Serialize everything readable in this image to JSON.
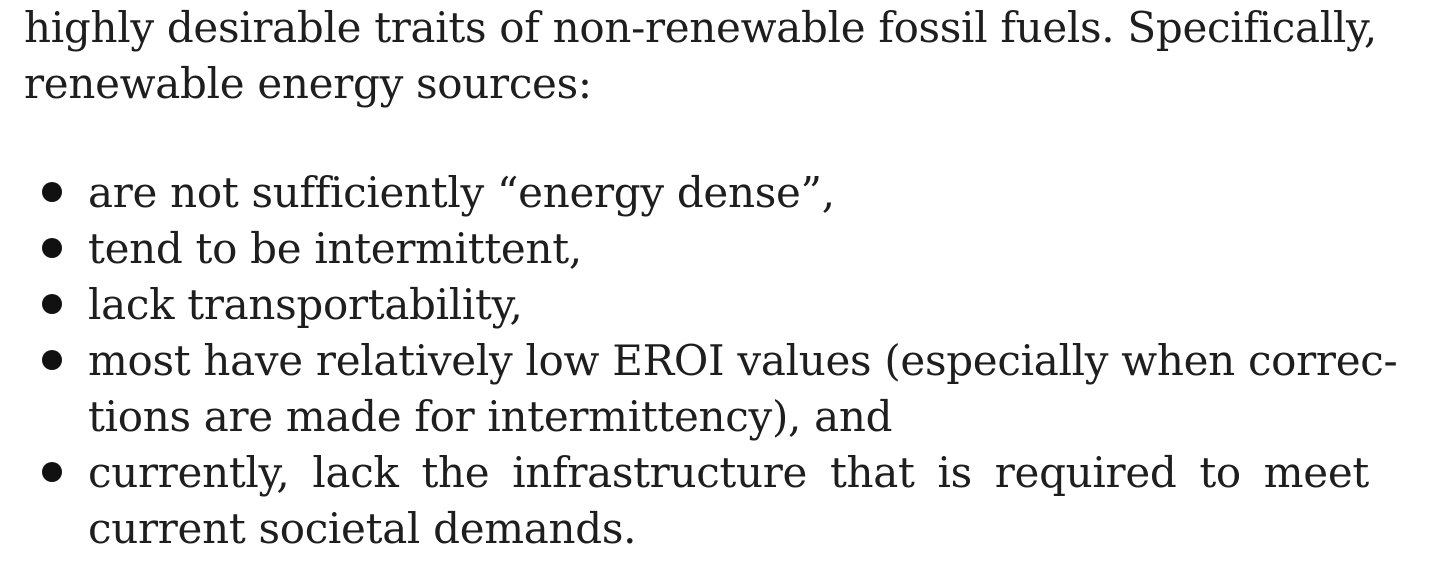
{
  "paragraph": {
    "line1": "highly desirable traits of non-renewable fossil fuels. Specifically,",
    "line2": "renewable energy sources:"
  },
  "bullets": [
    {
      "lines": [
        "are not sufficiently “energy dense”,"
      ]
    },
    {
      "lines": [
        "tend to be intermittent,"
      ]
    },
    {
      "lines": [
        "lack transportability,"
      ]
    },
    {
      "lines": [
        "most have relatively low EROI values (especially when correc-",
        "tions are made for intermittency), and"
      ]
    },
    {
      "lines": [
        "currently, lack the infrastructure that is required to meet",
        "current societal demands."
      ]
    }
  ]
}
